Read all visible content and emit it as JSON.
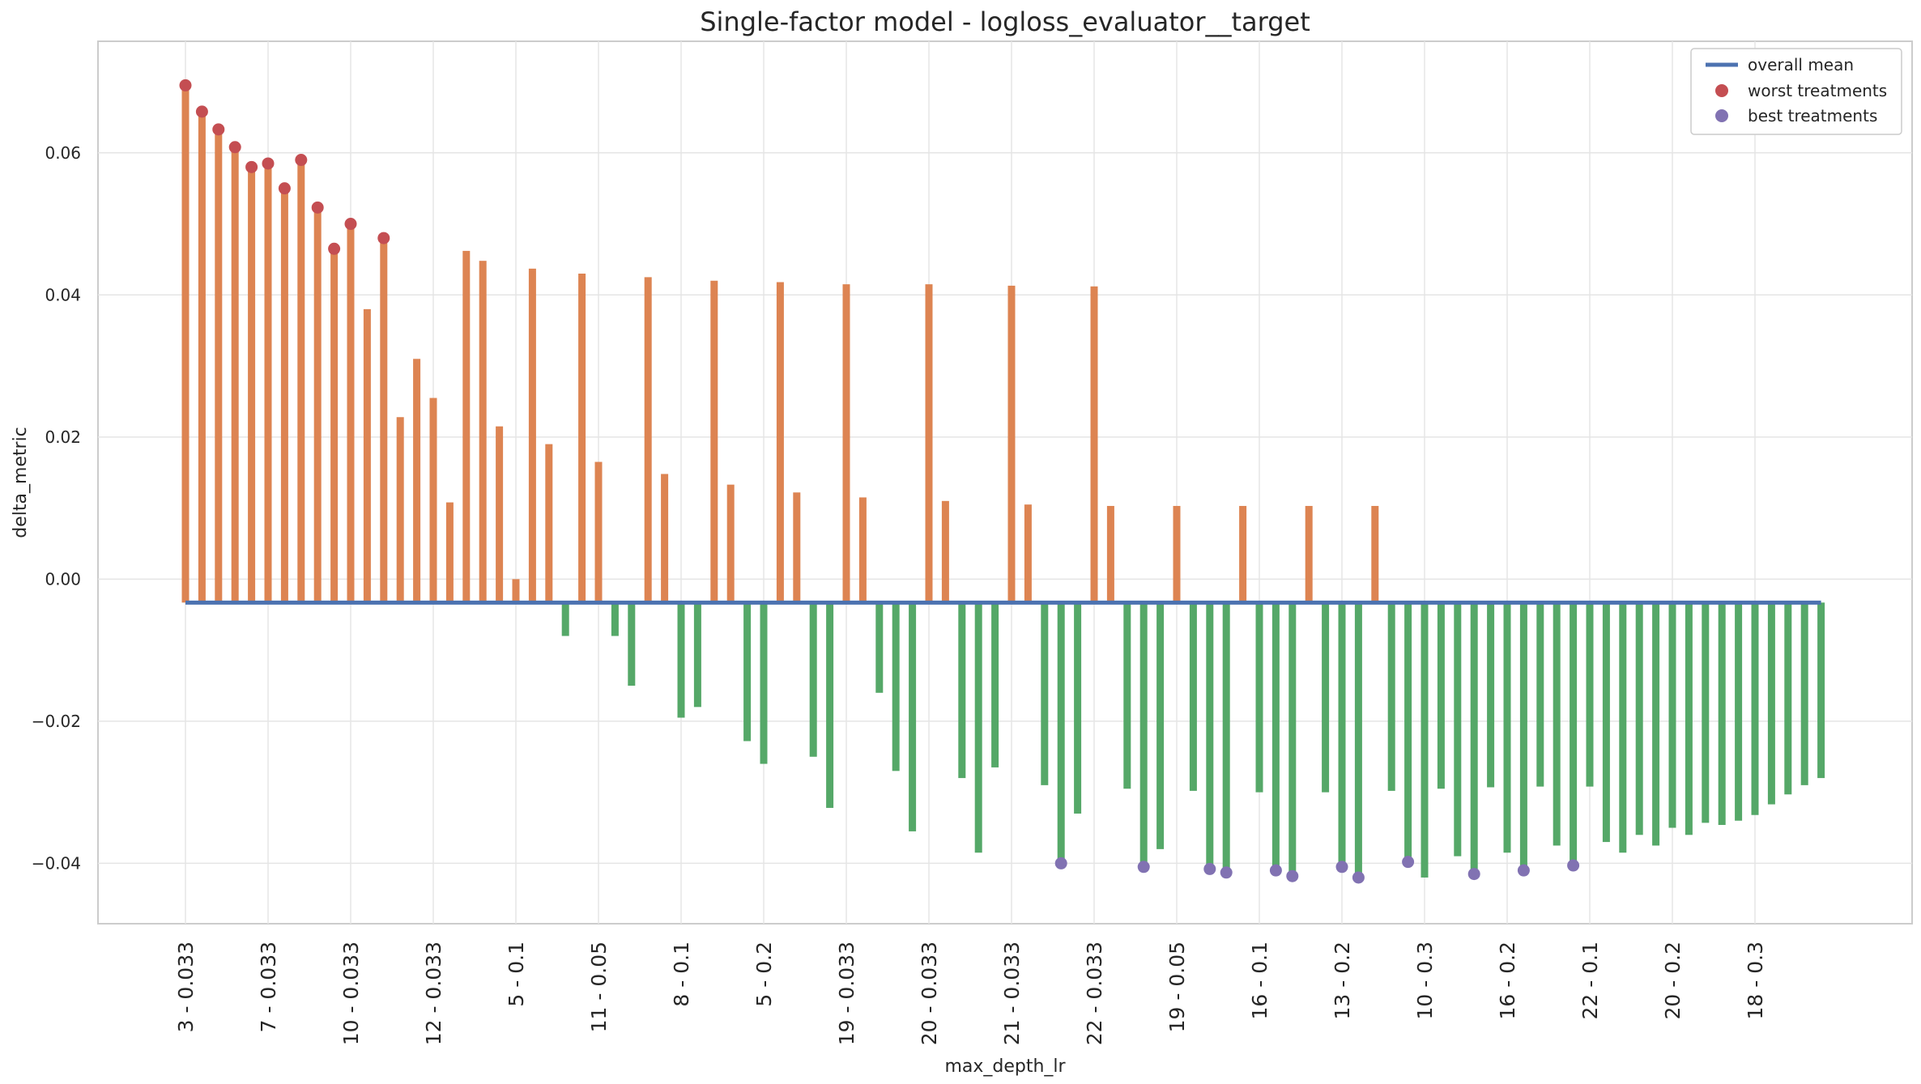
{
  "chart_data": {
    "type": "bar",
    "title": "Single-factor model - logloss_evaluator__target",
    "xlabel": "max_depth_lr",
    "ylabel": "delta_metric",
    "ylim": [
      -0.0485,
      0.0757
    ],
    "yticks": [
      -0.04,
      -0.02,
      0.0,
      0.02,
      0.04,
      0.06
    ],
    "ytick_labels": [
      "−0.04",
      "−0.02",
      "0.00",
      "0.02",
      "0.04",
      "0.06"
    ],
    "xtick_labels": [
      "3 - 0.033",
      "7 - 0.033",
      "10 - 0.033",
      "12 - 0.033",
      "5 - 0.1",
      "11 - 0.05",
      "8 - 0.1",
      "5 - 0.2",
      "19 - 0.033",
      "20 - 0.033",
      "21 - 0.033",
      "22 - 0.033",
      "19 - 0.05",
      "16 - 0.1",
      "13 - 0.2",
      "10 - 0.3",
      "16 - 0.2",
      "22 - 0.1",
      "20 - 0.2",
      "18 - 0.3"
    ],
    "xtick_every": 5,
    "overall_mean": -0.0033,
    "grid": true,
    "legend_position": "top-right",
    "legend": [
      {
        "label": "overall mean",
        "marker": "line",
        "color": "#4c72b0"
      },
      {
        "label": "worst treatments",
        "marker": "dot",
        "color": "#c44e52"
      },
      {
        "label": "best treatments",
        "marker": "dot",
        "color": "#8172b2"
      }
    ],
    "colors": {
      "positive": "#dd8452",
      "negative": "#55a868",
      "mean": "#4c72b0",
      "worst": "#c44e52",
      "best": "#8172b2"
    },
    "values": [
      0.0695,
      0.0658,
      0.0633,
      0.0608,
      0.058,
      0.0585,
      0.055,
      0.059,
      0.0523,
      0.0465,
      0.05,
      0.038,
      0.048,
      0.0228,
      0.031,
      0.0255,
      0.0108,
      0.0462,
      0.0448,
      0.0215,
      0.0,
      0.0437,
      0.019,
      -0.008,
      0.043,
      0.0165,
      -0.008,
      -0.015,
      0.0425,
      0.0148,
      -0.0195,
      -0.018,
      0.042,
      0.0133,
      -0.0228,
      -0.026,
      0.0418,
      0.0122,
      -0.025,
      -0.0322,
      0.0415,
      0.0115,
      -0.016,
      -0.027,
      -0.0355,
      0.0415,
      0.011,
      -0.028,
      -0.0385,
      -0.0265,
      0.0413,
      0.0105,
      -0.029,
      -0.04,
      -0.033,
      0.0412,
      0.0103,
      -0.0295,
      -0.0405,
      -0.038,
      0.0103,
      -0.0298,
      -0.0408,
      -0.0413,
      0.0103,
      -0.03,
      -0.041,
      -0.0418,
      0.0103,
      -0.03,
      -0.0405,
      -0.042,
      0.0103,
      -0.0298,
      -0.0398,
      -0.042,
      -0.0295,
      -0.039,
      -0.0415,
      -0.0293,
      -0.0385,
      -0.041,
      -0.0292,
      -0.0375,
      -0.0403,
      -0.0292,
      -0.037,
      -0.0385,
      -0.036,
      -0.0375,
      -0.035,
      -0.036,
      -0.0343,
      -0.0346,
      -0.034,
      -0.0332,
      -0.0317,
      -0.0303,
      -0.029,
      -0.028
    ],
    "worst_indices": [
      0,
      1,
      2,
      3,
      4,
      5,
      6,
      7,
      8,
      9,
      10,
      12
    ],
    "best_indices": [
      53,
      58,
      62,
      63,
      66,
      67,
      70,
      71,
      74,
      78,
      81,
      84
    ]
  }
}
